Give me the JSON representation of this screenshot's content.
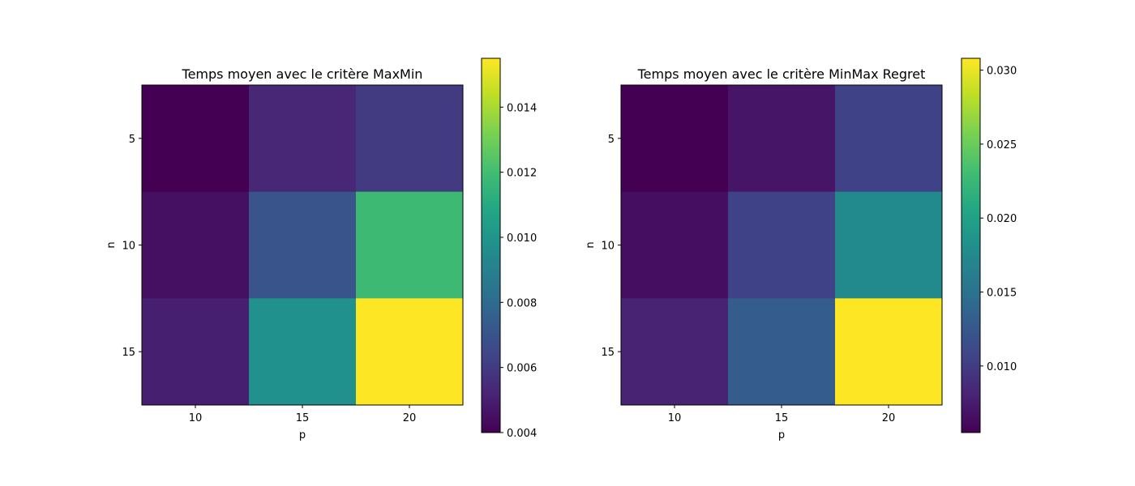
{
  "chart_data": [
    {
      "type": "heatmap",
      "title": "Temps moyen avec le critère MaxMin",
      "xlabel": "p",
      "ylabel": "n",
      "x_categories": [
        "10",
        "15",
        "20"
      ],
      "y_categories": [
        "5",
        "10",
        "15"
      ],
      "values": [
        [
          0.004,
          0.0053,
          0.006
        ],
        [
          0.0045,
          0.007,
          0.0118
        ],
        [
          0.005,
          0.0098,
          0.0155
        ]
      ],
      "colorbar": {
        "min": 0.004,
        "max": 0.0155,
        "ticks": [
          "0.004",
          "0.006",
          "0.008",
          "0.010",
          "0.012",
          "0.014"
        ],
        "tick_values": [
          0.004,
          0.006,
          0.008,
          0.01,
          0.012,
          0.014
        ]
      },
      "colormap": "viridis"
    },
    {
      "type": "heatmap",
      "title": "Temps moyen avec le critère MinMax Regret",
      "xlabel": "p",
      "ylabel": "n",
      "x_categories": [
        "10",
        "15",
        "20"
      ],
      "y_categories": [
        "5",
        "10",
        "15"
      ],
      "values": [
        [
          0.0055,
          0.007,
          0.0105
        ],
        [
          0.0065,
          0.0105,
          0.0175
        ],
        [
          0.008,
          0.013,
          0.0308
        ]
      ],
      "colorbar": {
        "min": 0.0055,
        "max": 0.0308,
        "ticks": [
          "0.010",
          "0.015",
          "0.020",
          "0.025",
          "0.030"
        ],
        "tick_values": [
          0.01,
          0.015,
          0.02,
          0.025,
          0.03
        ]
      },
      "colormap": "viridis"
    }
  ]
}
